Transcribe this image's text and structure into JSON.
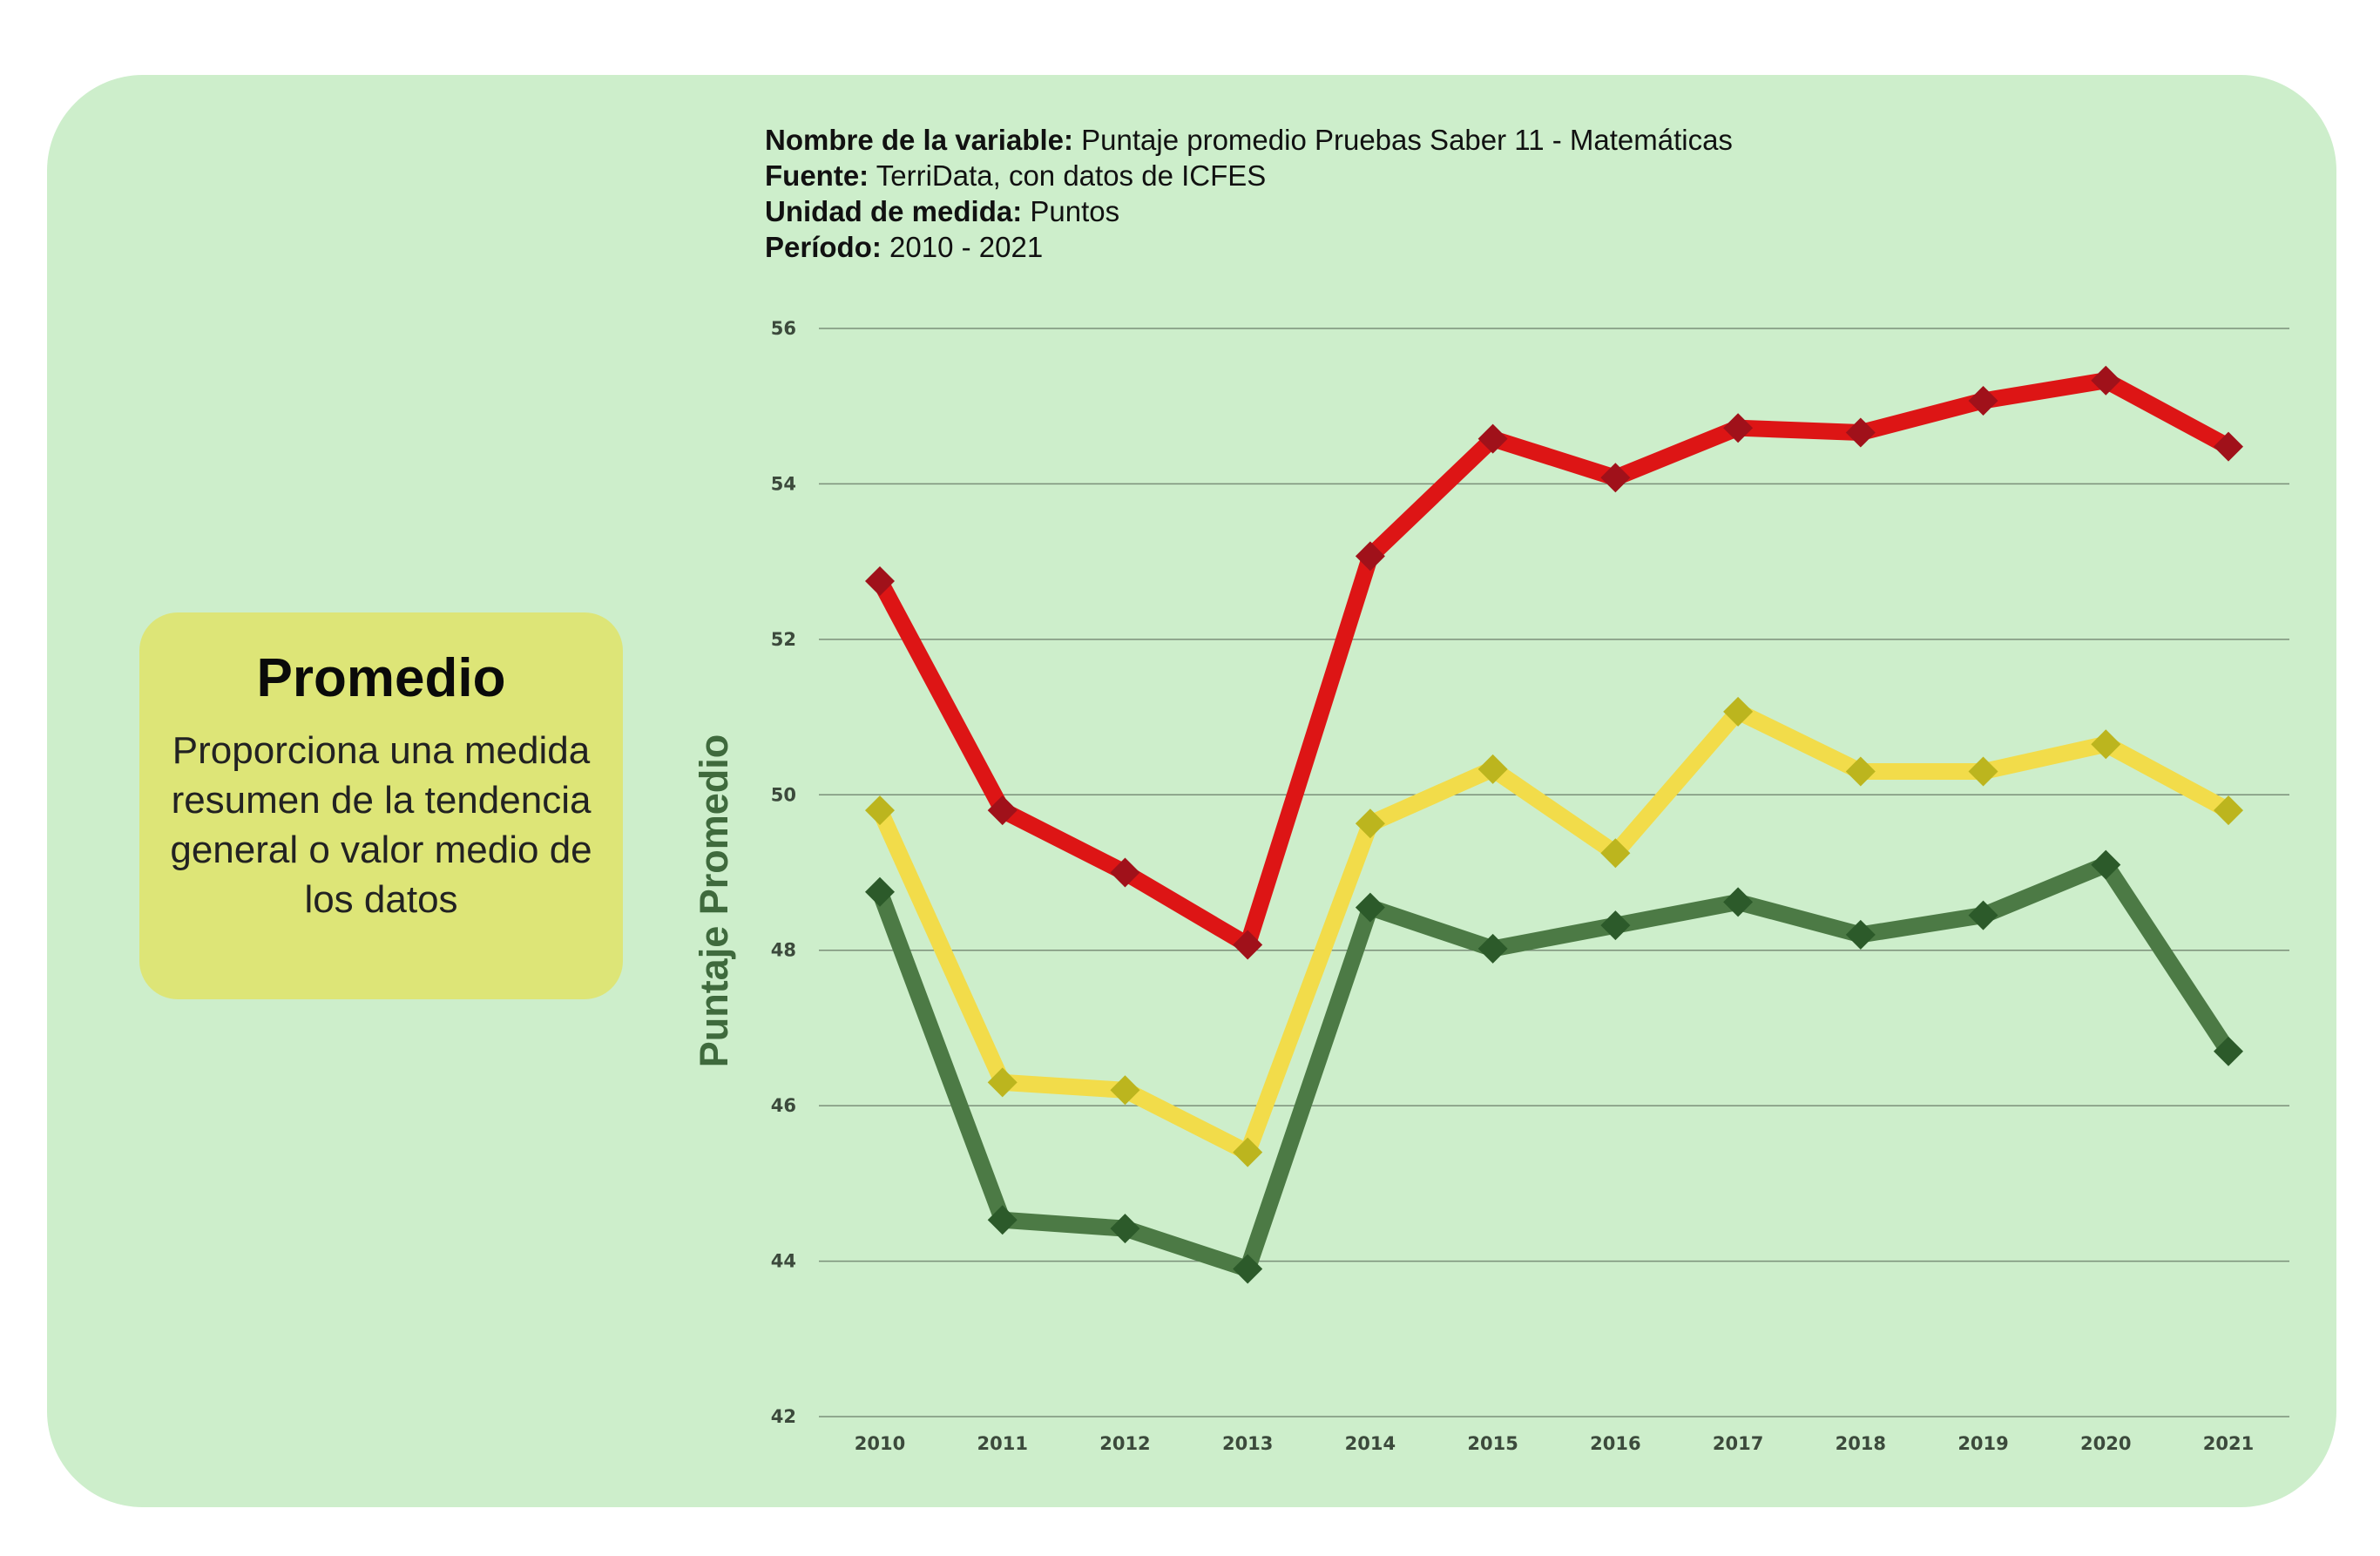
{
  "meta": {
    "variable_label": "Nombre de la variable:",
    "variable_value": "Puntaje promedio Pruebas Saber 11 - Matemáticas",
    "source_label": "Fuente:",
    "source_value": "TerriData, con datos de ICFES",
    "unit_label": "Unidad de medida:",
    "unit_value": "Puntos",
    "period_label": "Período:",
    "period_value": "2010 - 2021"
  },
  "info": {
    "title": "Promedio",
    "description": "Proporciona una medida resumen de la tendencia general o valor medio de los datos"
  },
  "colors": {
    "card_background": "#cdeecb",
    "info_background": "#dde577",
    "red_line": "#dd1515",
    "red_marker": "#a0111a",
    "yellow_line": "#f2dc4a",
    "yellow_marker": "#bcb51e",
    "green_line": "#4c7a45",
    "green_marker": "#2c5a2a"
  },
  "chart_data": {
    "type": "line",
    "title": "",
    "xlabel": "",
    "ylabel": "Puntaje Promedio",
    "x": [
      "2010",
      "2011",
      "2012",
      "2013",
      "2014",
      "2015",
      "2016",
      "2017",
      "2018",
      "2019",
      "2020",
      "2021"
    ],
    "ylim": [
      42,
      56
    ],
    "yticks": [
      42,
      44,
      46,
      48,
      50,
      52,
      54,
      56
    ],
    "grid": true,
    "legend": false,
    "series": [
      {
        "color_key": "red",
        "values": [
          52.75,
          49.8,
          49.0,
          48.07,
          53.07,
          54.58,
          54.08,
          54.72,
          54.66,
          55.07,
          55.33,
          54.48
        ]
      },
      {
        "color_key": "yellow",
        "values": [
          49.8,
          46.3,
          46.2,
          45.4,
          49.63,
          50.33,
          49.25,
          51.07,
          50.3,
          50.3,
          50.65,
          49.8
        ]
      },
      {
        "color_key": "green",
        "values": [
          48.75,
          44.53,
          44.42,
          43.9,
          48.55,
          48.02,
          48.32,
          48.62,
          48.2,
          48.45,
          49.1,
          46.7
        ]
      }
    ]
  }
}
